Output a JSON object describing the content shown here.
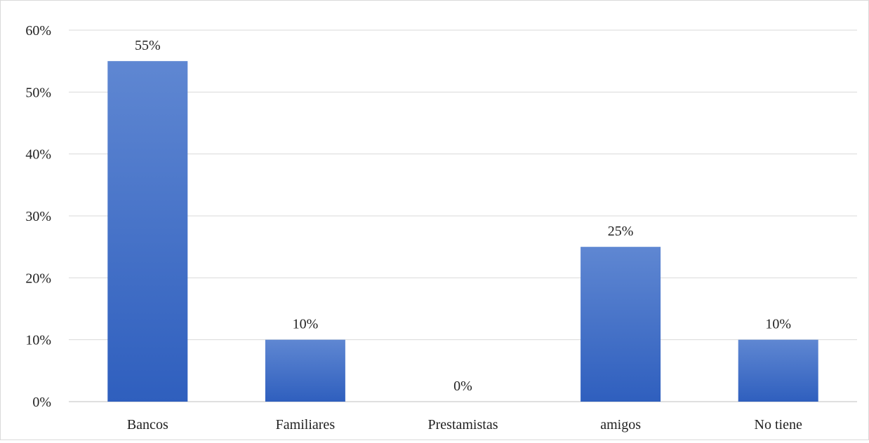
{
  "chart_data": {
    "type": "bar",
    "title": "",
    "xlabel": "",
    "ylabel": "",
    "categories": [
      "Bancos",
      "Familiares",
      "Prestamistas",
      "amigos",
      "No tiene"
    ],
    "values": [
      0.55,
      0.1,
      0.0,
      0.25,
      0.1
    ],
    "data_labels": [
      "55%",
      "10%",
      "0%",
      "25%",
      "10%"
    ],
    "ylim": [
      0,
      0.6
    ],
    "yticks": [
      0,
      0.1,
      0.2,
      0.3,
      0.4,
      0.5,
      0.6
    ],
    "ytick_labels": [
      "0%",
      "10%",
      "20%",
      "30%",
      "40%",
      "50%",
      "60%"
    ],
    "grid": true,
    "legend": "none",
    "colors": {
      "bar_top": "#5f87d2",
      "bar_bottom": "#2f5fbe",
      "grid": "#d9d9d9",
      "text": "#222222"
    }
  }
}
